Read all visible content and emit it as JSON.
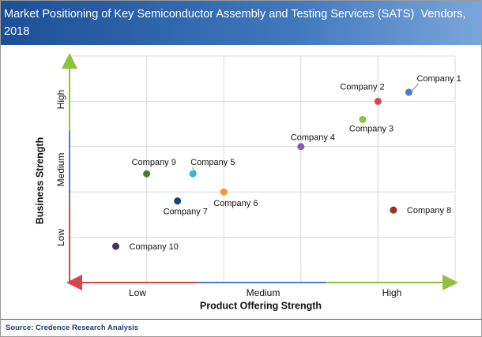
{
  "chart_data": {
    "type": "scatter",
    "title": "Market Positioning of Key Semiconductor Assembly and Testing Services (SATS)  Vendors, 2018",
    "x_label": "Product Offering Strength",
    "y_label": "Business Strength",
    "x_levels": [
      "Low",
      "Medium",
      "High"
    ],
    "y_levels": [
      "Low",
      "Medium",
      "High"
    ],
    "xlim": [
      0,
      5
    ],
    "ylim": [
      0,
      5
    ],
    "grid": true,
    "series": [
      {
        "name": "Company 1",
        "color": "#4a7bd0",
        "x": [
          4.4
        ],
        "values": [
          4.2
        ]
      },
      {
        "name": "Company 2",
        "color": "#d9434a",
        "x": [
          4.0
        ],
        "values": [
          4.0
        ]
      },
      {
        "name": "Company 3",
        "color": "#8dc13f",
        "x": [
          3.8
        ],
        "values": [
          3.6
        ]
      },
      {
        "name": "Company 4",
        "color": "#8a5bb5",
        "x": [
          3.0
        ],
        "values": [
          3.0
        ]
      },
      {
        "name": "Company 5",
        "color": "#3fb2d6",
        "x": [
          1.6
        ],
        "values": [
          2.4
        ]
      },
      {
        "name": "Company 6",
        "color": "#f59a2a",
        "x": [
          2.0
        ],
        "values": [
          2.0
        ]
      },
      {
        "name": "Company 7",
        "color": "#1f3f78",
        "x": [
          1.4
        ],
        "values": [
          1.8
        ]
      },
      {
        "name": "Company 8",
        "color": "#a02a2a",
        "x": [
          4.2
        ],
        "values": [
          1.6
        ]
      },
      {
        "name": "Company 9",
        "color": "#4f7a2a",
        "x": [
          1.0
        ],
        "values": [
          2.4
        ]
      },
      {
        "name": "Company 10",
        "color": "#4a2f6a",
        "x": [
          0.6
        ],
        "values": [
          0.8
        ]
      }
    ]
  },
  "source": "Source: Credence Research Analysis"
}
